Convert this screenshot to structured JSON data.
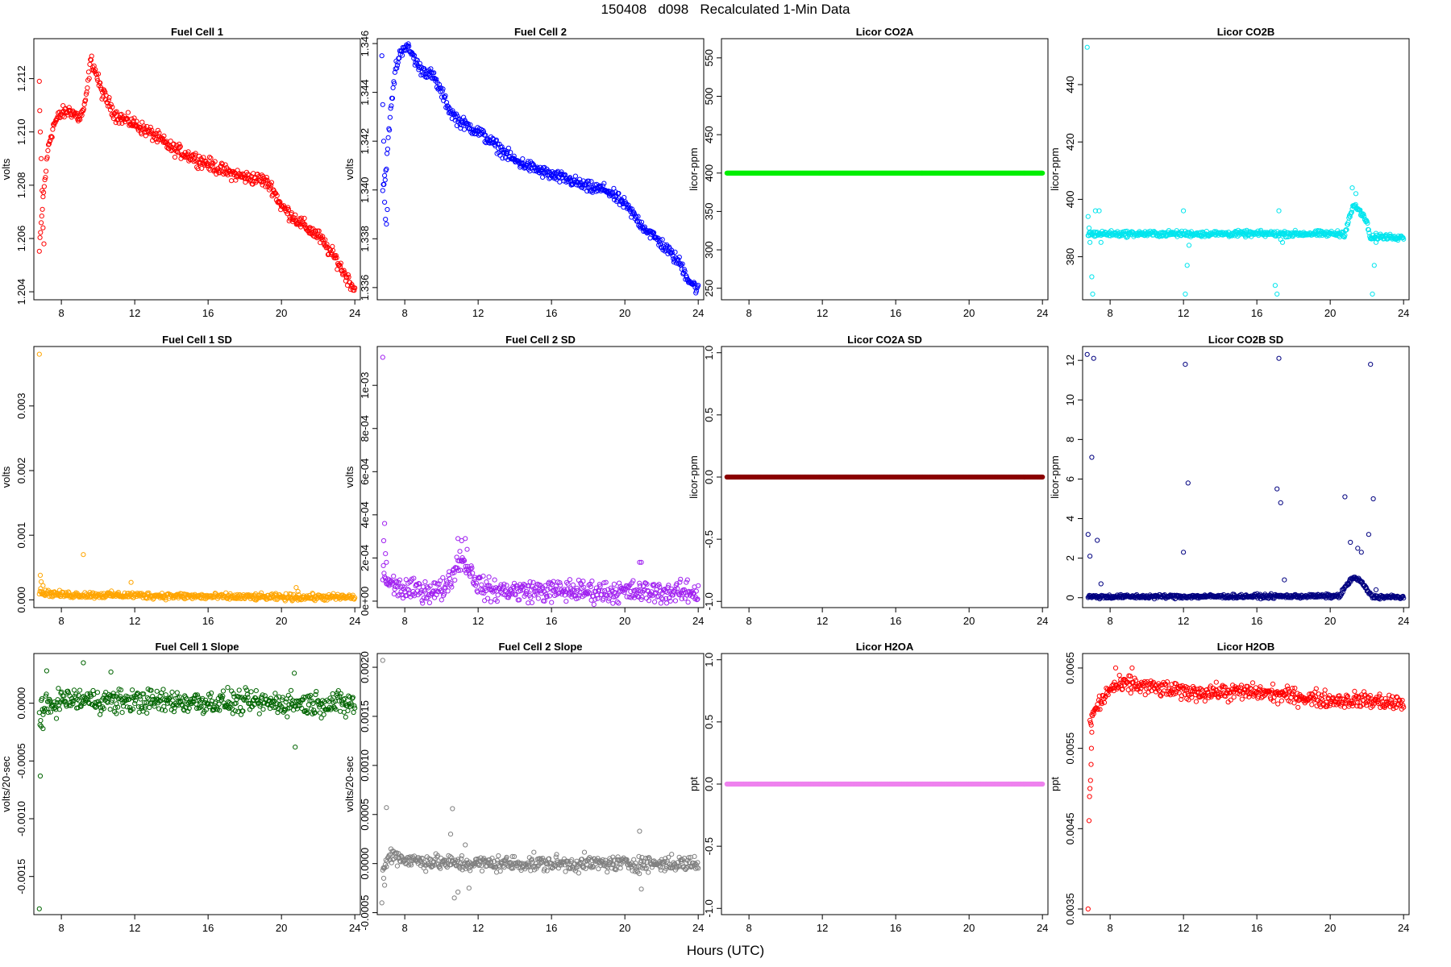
{
  "page": {
    "title": "150408   d098   Recalculated 1-Min Data",
    "xlabel": "Hours (UTC)"
  },
  "chart_data": [
    {
      "type": "scatter",
      "title": "Fuel Cell 1",
      "ylabel": "volts",
      "color": "#ff0000",
      "xlim": [
        6.5,
        24.3
      ],
      "ylim": [
        1.2037,
        1.2135
      ],
      "xticks": [
        8,
        12,
        16,
        20,
        24
      ],
      "yticks": [
        1.204,
        1.206,
        1.208,
        1.21,
        1.212
      ],
      "ytick_labels": [
        "1.204",
        "1.206",
        "1.208",
        "1.210",
        "1.212"
      ],
      "trend": [
        [
          6.8,
          1.2055
        ],
        [
          7.0,
          1.2075
        ],
        [
          7.3,
          1.2095
        ],
        [
          7.6,
          1.2103
        ],
        [
          8.0,
          1.2107
        ],
        [
          8.5,
          1.2108
        ],
        [
          9.0,
          1.2105
        ],
        [
          9.3,
          1.211
        ],
        [
          9.6,
          1.2127
        ],
        [
          9.8,
          1.2124
        ],
        [
          10.2,
          1.2115
        ],
        [
          11.0,
          1.2106
        ],
        [
          12.0,
          1.2103
        ],
        [
          13.0,
          1.2099
        ],
        [
          14.0,
          1.2094
        ],
        [
          15.0,
          1.2091
        ],
        [
          16.0,
          1.2088
        ],
        [
          17.0,
          1.2085
        ],
        [
          18.0,
          1.2083
        ],
        [
          19.0,
          1.2082
        ],
        [
          19.5,
          1.2079
        ],
        [
          20.0,
          1.2072
        ],
        [
          21.0,
          1.2066
        ],
        [
          22.0,
          1.2061
        ],
        [
          23.0,
          1.2052
        ],
        [
          23.5,
          1.2046
        ],
        [
          24.0,
          1.2041
        ]
      ],
      "noise": 0.00012,
      "n": 520,
      "outliers": [
        [
          6.8,
          1.2119
        ],
        [
          6.82,
          1.2108
        ],
        [
          6.85,
          1.21
        ],
        [
          6.9,
          1.209
        ],
        [
          6.95,
          1.2078
        ],
        [
          7.0,
          1.2064
        ],
        [
          7.05,
          1.2058
        ]
      ]
    },
    {
      "type": "scatter",
      "title": "Fuel Cell 2",
      "ylabel": "volts",
      "color": "#0000ff",
      "xlim": [
        6.5,
        24.3
      ],
      "ylim": [
        1.3355,
        1.3462
      ],
      "xticks": [
        8,
        12,
        16,
        20,
        24
      ],
      "yticks": [
        1.336,
        1.338,
        1.34,
        1.342,
        1.344,
        1.346
      ],
      "ytick_labels": [
        "1.336",
        "1.338",
        "1.340",
        "1.342",
        "1.344",
        "1.346"
      ],
      "trend": [
        [
          6.8,
          1.34
        ],
        [
          7.0,
          1.341
        ],
        [
          7.2,
          1.343
        ],
        [
          7.5,
          1.345
        ],
        [
          7.8,
          1.3457
        ],
        [
          8.0,
          1.3459
        ],
        [
          8.3,
          1.3457
        ],
        [
          8.8,
          1.345
        ],
        [
          9.5,
          1.3447
        ],
        [
          10.0,
          1.344
        ],
        [
          10.5,
          1.3432
        ],
        [
          11.0,
          1.3428
        ],
        [
          12.0,
          1.3424
        ],
        [
          13.0,
          1.3418
        ],
        [
          14.0,
          1.3412
        ],
        [
          15.0,
          1.3409
        ],
        [
          16.0,
          1.3406
        ],
        [
          17.0,
          1.3404
        ],
        [
          18.0,
          1.3401
        ],
        [
          19.0,
          1.34
        ],
        [
          20.0,
          1.3394
        ],
        [
          21.0,
          1.3385
        ],
        [
          22.0,
          1.3378
        ],
        [
          23.0,
          1.337
        ],
        [
          23.5,
          1.3363
        ],
        [
          24.0,
          1.3359
        ]
      ],
      "noise": 0.00012,
      "n": 520,
      "outliers": [
        [
          6.75,
          1.3455
        ],
        [
          6.8,
          1.3435
        ],
        [
          6.85,
          1.342
        ],
        [
          6.9,
          1.3395
        ],
        [
          6.95,
          1.3388
        ],
        [
          7.0,
          1.3386
        ],
        [
          7.05,
          1.3392
        ]
      ]
    },
    {
      "type": "scatter",
      "title": "Licor CO2A",
      "ylabel": "licor-ppm",
      "color": "#00ee00",
      "xlim": [
        6.5,
        24.3
      ],
      "ylim": [
        235,
        575
      ],
      "xticks": [
        8,
        12,
        16,
        20,
        24
      ],
      "yticks": [
        250,
        300,
        350,
        400,
        450,
        500,
        550
      ],
      "ytick_labels": [
        "250",
        "300",
        "350",
        "400",
        "450",
        "500",
        "550"
      ],
      "trend": [
        [
          6.8,
          400
        ],
        [
          24.0,
          400
        ]
      ],
      "noise": 0,
      "n": 600,
      "outliers": []
    },
    {
      "type": "scatter",
      "title": "Licor CO2B",
      "ylabel": "licor-ppm",
      "color": "#00e5ee",
      "xlim": [
        6.5,
        24.3
      ],
      "ylim": [
        365,
        456
      ],
      "xticks": [
        8,
        12,
        16,
        20,
        24
      ],
      "yticks": [
        380,
        400,
        420,
        440
      ],
      "ytick_labels": [
        "380",
        "400",
        "420",
        "440"
      ],
      "trend": [
        [
          6.8,
          388
        ],
        [
          20.8,
          388
        ],
        [
          21.0,
          393
        ],
        [
          21.3,
          398
        ],
        [
          21.6,
          396
        ],
        [
          22.0,
          392
        ],
        [
          22.2,
          386
        ],
        [
          22.5,
          387
        ],
        [
          24.0,
          387
        ]
      ],
      "noise": 0.5,
      "n": 560,
      "outliers": [
        [
          6.75,
          453
        ],
        [
          6.8,
          394
        ],
        [
          6.85,
          390
        ],
        [
          6.9,
          385
        ],
        [
          7.0,
          373
        ],
        [
          7.05,
          367
        ],
        [
          7.2,
          396
        ],
        [
          7.4,
          396
        ],
        [
          7.5,
          385
        ],
        [
          12.0,
          396
        ],
        [
          12.1,
          367
        ],
        [
          12.2,
          377
        ],
        [
          12.3,
          384
        ],
        [
          17.0,
          370
        ],
        [
          17.1,
          367
        ],
        [
          17.2,
          396
        ],
        [
          17.3,
          386
        ],
        [
          17.4,
          385
        ],
        [
          21.2,
          404
        ],
        [
          21.4,
          402
        ],
        [
          22.3,
          367
        ],
        [
          22.4,
          377
        ],
        [
          22.5,
          385
        ]
      ]
    },
    {
      "type": "scatter",
      "title": "Fuel Cell 1 SD",
      "ylabel": "volts",
      "color": "#ffa500",
      "xlim": [
        6.5,
        24.3
      ],
      "ylim": [
        -0.00012,
        0.00392
      ],
      "xticks": [
        8,
        12,
        16,
        20,
        24
      ],
      "yticks": [
        0,
        0.001,
        0.002,
        0.003
      ],
      "ytick_labels": [
        "0.000",
        "0.001",
        "0.002",
        "0.003"
      ],
      "trend": [
        [
          6.8,
          0.00012
        ],
        [
          8.0,
          8e-05
        ],
        [
          12.0,
          7e-05
        ],
        [
          16.0,
          5e-05
        ],
        [
          20.0,
          4e-05
        ],
        [
          24.0,
          4e-05
        ]
      ],
      "noise": 2.5e-05,
      "n": 500,
      "outliers": [
        [
          6.8,
          0.0038
        ],
        [
          6.85,
          0.00038
        ],
        [
          6.9,
          0.00028
        ],
        [
          7.0,
          0.00022
        ],
        [
          9.2,
          0.0007
        ],
        [
          11.8,
          0.00027
        ],
        [
          20.8,
          0.00019
        ],
        [
          20.9,
          0.00013
        ]
      ]
    },
    {
      "type": "scatter",
      "title": "Fuel Cell 2 SD",
      "ylabel": "volts",
      "color": "#a020f0",
      "xlim": [
        6.5,
        24.3
      ],
      "ylim": [
        -3e-05,
        0.00118
      ],
      "xticks": [
        8,
        12,
        16,
        20,
        24
      ],
      "yticks": [
        0,
        0.0002,
        0.0004,
        0.0006,
        0.0008,
        0.001
      ],
      "ytick_labels": [
        "0e+00",
        "2e-04",
        "4e-04",
        "6e-04",
        "8e-04",
        "1e-03"
      ],
      "trend": [
        [
          6.8,
          0.00012
        ],
        [
          7.2,
          8e-05
        ],
        [
          8.0,
          5e-05
        ],
        [
          10.0,
          5e-05
        ],
        [
          10.6,
          0.00012
        ],
        [
          11.0,
          0.0002
        ],
        [
          11.5,
          0.00015
        ],
        [
          12.0,
          8e-05
        ],
        [
          12.5,
          5e-05
        ],
        [
          24.0,
          4e-05
        ]
      ],
      "noise": 2.5e-05,
      "n": 500,
      "outliers": [
        [
          6.8,
          0.00113
        ],
        [
          6.9,
          0.00036
        ],
        [
          6.85,
          0.00028
        ],
        [
          6.95,
          0.00022
        ],
        [
          7.0,
          0.00018
        ],
        [
          10.9,
          0.00029
        ],
        [
          11.1,
          0.00028
        ],
        [
          11.3,
          0.00029
        ],
        [
          11.4,
          0.00024
        ],
        [
          17.0,
          0.0001
        ],
        [
          20.8,
          0.00018
        ],
        [
          20.9,
          0.00018
        ]
      ]
    },
    {
      "type": "scatter",
      "title": "Licor CO2A SD",
      "ylabel": "licor-ppm",
      "color": "#8b0000",
      "xlim": [
        6.5,
        24.3
      ],
      "ylim": [
        -1.05,
        1.05
      ],
      "xticks": [
        8,
        12,
        16,
        20,
        24
      ],
      "yticks": [
        -1,
        -0.5,
        0,
        0.5,
        1
      ],
      "ytick_labels": [
        "-1.0",
        "-0.5",
        "0.0",
        "0.5",
        "1.0"
      ],
      "trend": [
        [
          6.8,
          0
        ],
        [
          24.0,
          0
        ]
      ],
      "noise": 0,
      "n": 600,
      "outliers": []
    },
    {
      "type": "scatter",
      "title": "Licor CO2B SD",
      "ylabel": "licor-ppm",
      "color": "#000080",
      "xlim": [
        6.5,
        24.3
      ],
      "ylim": [
        -0.5,
        12.7
      ],
      "xticks": [
        8,
        12,
        16,
        20,
        24
      ],
      "yticks": [
        0,
        2,
        4,
        6,
        8,
        10,
        12
      ],
      "ytick_labels": [
        "0",
        "2",
        "4",
        "6",
        "8",
        "10",
        "12"
      ],
      "trend": [
        [
          6.8,
          0.05
        ],
        [
          20.5,
          0.08
        ],
        [
          20.8,
          0.5
        ],
        [
          21.2,
          1.0
        ],
        [
          21.6,
          0.9
        ],
        [
          22.0,
          0.4
        ],
        [
          22.3,
          0.05
        ],
        [
          24.0,
          0.02
        ]
      ],
      "noise": 0.05,
      "n": 520,
      "outliers": [
        [
          6.75,
          12.3
        ],
        [
          6.8,
          3.2
        ],
        [
          6.9,
          2.1
        ],
        [
          7.0,
          7.1
        ],
        [
          7.1,
          12.1
        ],
        [
          7.3,
          2.9
        ],
        [
          7.5,
          0.7
        ],
        [
          12.0,
          2.3
        ],
        [
          12.1,
          11.8
        ],
        [
          12.25,
          5.8
        ],
        [
          17.1,
          5.5
        ],
        [
          17.2,
          12.1
        ],
        [
          17.3,
          4.8
        ],
        [
          17.5,
          0.9
        ],
        [
          20.8,
          5.1
        ],
        [
          21.1,
          2.8
        ],
        [
          21.5,
          2.5
        ],
        [
          21.7,
          2.3
        ],
        [
          22.1,
          3.2
        ],
        [
          22.2,
          11.8
        ],
        [
          22.35,
          5.0
        ],
        [
          22.5,
          0.4
        ]
      ]
    },
    {
      "type": "scatter",
      "title": "Fuel Cell 1 Slope",
      "ylabel": "volts/20-sec",
      "color": "#006400",
      "xlim": [
        6.5,
        24.3
      ],
      "ylim": [
        -0.00183,
        0.00043
      ],
      "xticks": [
        8,
        12,
        16,
        20,
        24
      ],
      "yticks": [
        -0.0015,
        -0.001,
        -0.0005,
        0
      ],
      "ytick_labels": [
        "-0.0015",
        "-0.0010",
        "-0.0005",
        "0.0000"
      ],
      "trend": [
        [
          6.8,
          -8e-05
        ],
        [
          7.2,
          -4e-05
        ],
        [
          8.0,
          3e-05
        ],
        [
          12.0,
          2e-05
        ],
        [
          16.0,
          1e-05
        ],
        [
          20.0,
          0.0
        ],
        [
          24.0,
          0.0
        ]
      ],
      "noise": 5e-05,
      "n": 500,
      "outliers": [
        [
          6.8,
          -0.00178
        ],
        [
          6.85,
          -0.00063
        ],
        [
          6.9,
          -0.0002
        ],
        [
          7.0,
          -0.00022
        ],
        [
          7.2,
          0.00028
        ],
        [
          9.2,
          0.00035
        ],
        [
          10.7,
          0.00027
        ],
        [
          20.7,
          0.00026
        ],
        [
          20.75,
          -0.00038
        ],
        [
          11.0,
          -9e-05
        ],
        [
          23.5,
          -0.00012
        ]
      ]
    },
    {
      "type": "scatter",
      "title": "Fuel Cell 2 Slope",
      "ylabel": "volts/20-sec",
      "color": "#808080",
      "xlim": [
        6.5,
        24.3
      ],
      "ylim": [
        -0.00052,
        0.00214
      ],
      "xticks": [
        8,
        12,
        16,
        20,
        24
      ],
      "yticks": [
        -0.0005,
        0,
        0.0005,
        0.001,
        0.0015,
        0.002
      ],
      "ytick_labels": [
        "-0.0005",
        "0.0000",
        "0.0005",
        "0.0010",
        "0.0015",
        "0.0020"
      ],
      "trend": [
        [
          6.8,
          -0.0001
        ],
        [
          7.0,
          2e-05
        ],
        [
          7.3,
          0.0001
        ],
        [
          8.0,
          4e-05
        ],
        [
          10.0,
          1e-05
        ],
        [
          11.0,
          0.0
        ],
        [
          12.0,
          0.0
        ],
        [
          24.0,
          0.0
        ]
      ],
      "noise": 4e-05,
      "n": 500,
      "outliers": [
        [
          6.8,
          0.00207
        ],
        [
          6.85,
          -0.00015
        ],
        [
          6.9,
          -0.00022
        ],
        [
          7.0,
          0.00057
        ],
        [
          6.75,
          -0.0004
        ],
        [
          10.6,
          0.00056
        ],
        [
          10.5,
          0.0003
        ],
        [
          10.9,
          -0.00029
        ],
        [
          10.7,
          -0.00035
        ],
        [
          11.3,
          0.00019
        ],
        [
          11.5,
          -0.00025
        ],
        [
          20.8,
          0.00033
        ],
        [
          20.9,
          -0.00026
        ]
      ]
    },
    {
      "type": "scatter",
      "title": "Licor H2OA",
      "ylabel": "ppt",
      "color": "#ee82ee",
      "xlim": [
        6.5,
        24.3
      ],
      "ylim": [
        -1.05,
        1.05
      ],
      "xticks": [
        8,
        12,
        16,
        20,
        24
      ],
      "yticks": [
        -1,
        -0.5,
        0,
        0.5,
        1
      ],
      "ytick_labels": [
        "-1.0",
        "-0.5",
        "0.0",
        "0.5",
        "1.0"
      ],
      "trend": [
        [
          6.8,
          0
        ],
        [
          24.0,
          0
        ]
      ],
      "noise": 0,
      "n": 600,
      "outliers": []
    },
    {
      "type": "scatter",
      "title": "Licor H2OB",
      "ylabel": "ppt",
      "color": "#ff0000",
      "xlim": [
        6.5,
        24.3
      ],
      "ylim": [
        0.00343,
        0.00668
      ],
      "xticks": [
        8,
        12,
        16,
        20,
        24
      ],
      "yticks": [
        0.0035,
        0.0045,
        0.0055,
        0.0065
      ],
      "ytick_labels": [
        "0.0035",
        "0.0045",
        "0.0055",
        "0.0065"
      ],
      "trend": [
        [
          6.9,
          0.0058
        ],
        [
          7.2,
          0.006
        ],
        [
          7.6,
          0.0061
        ],
        [
          8.0,
          0.00625
        ],
        [
          9.0,
          0.0063
        ],
        [
          12.0,
          0.0062
        ],
        [
          16.0,
          0.0062
        ],
        [
          20.0,
          0.0061
        ],
        [
          22.0,
          0.0061
        ],
        [
          24.0,
          0.00605
        ]
      ],
      "noise": 5e-05,
      "n": 500,
      "outliers": [
        [
          6.8,
          0.0035
        ],
        [
          6.85,
          0.0046
        ],
        [
          6.88,
          0.0049
        ],
        [
          6.9,
          0.005
        ],
        [
          6.93,
          0.0051
        ],
        [
          6.96,
          0.0053
        ],
        [
          6.98,
          0.0055
        ],
        [
          7.0,
          0.0057
        ],
        [
          8.3,
          0.0065
        ],
        [
          9.2,
          0.0065
        ]
      ]
    }
  ]
}
